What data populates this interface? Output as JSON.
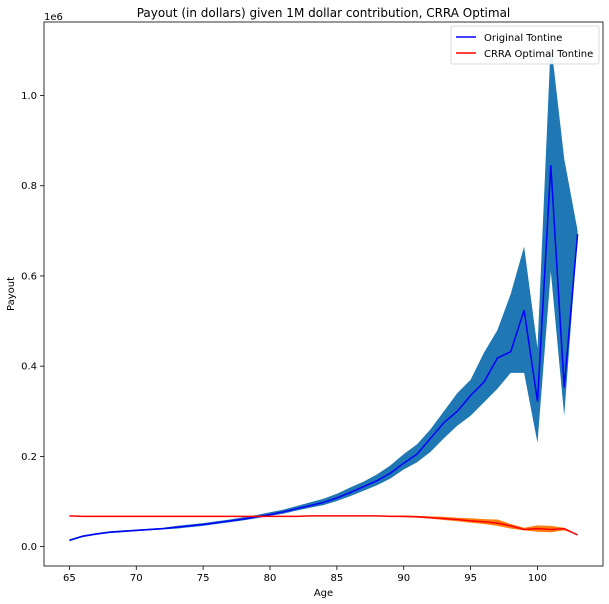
{
  "chart_data": {
    "type": "line",
    "title": "Payout (in dollars) given 1M dollar contribution, CRRA Optimal",
    "xlabel": "Age",
    "ylabel": "Payout",
    "y_offset_label": "1e6",
    "xlim": [
      63.1,
      104.9
    ],
    "ylim": [
      -0.043,
      1.163
    ],
    "x_ticks": [
      65,
      70,
      75,
      80,
      85,
      90,
      95,
      100
    ],
    "y_ticks": [
      0.0,
      0.2,
      0.4,
      0.6,
      0.8,
      1.0
    ],
    "y_tick_labels": [
      "0.0",
      "0.2",
      "0.4",
      "0.6",
      "0.8",
      "1.0"
    ],
    "grid": false,
    "legend_position": "top-right",
    "x": [
      65,
      66,
      67,
      68,
      69,
      70,
      71,
      72,
      73,
      74,
      75,
      76,
      77,
      78,
      79,
      80,
      81,
      82,
      83,
      84,
      85,
      86,
      87,
      88,
      89,
      90,
      91,
      92,
      93,
      94,
      95,
      96,
      97,
      98,
      99,
      100,
      101,
      102,
      103
    ],
    "series": [
      {
        "name": "Original Tontine",
        "color": "#0000ff",
        "band_color": "#1f77b4",
        "values": [
          0.014,
          0.023,
          0.028,
          0.032,
          0.034,
          0.036,
          0.038,
          0.04,
          0.043,
          0.046,
          0.049,
          0.053,
          0.057,
          0.061,
          0.066,
          0.071,
          0.077,
          0.084,
          0.091,
          0.098,
          0.108,
          0.12,
          0.133,
          0.146,
          0.163,
          0.185,
          0.205,
          0.24,
          0.275,
          0.3,
          0.335,
          0.365,
          0.418,
          0.432,
          0.524,
          0.322,
          0.845,
          0.353,
          0.693
        ],
        "lower": [
          0.012,
          0.021,
          0.026,
          0.03,
          0.032,
          0.034,
          0.036,
          0.038,
          0.04,
          0.043,
          0.046,
          0.05,
          0.054,
          0.058,
          0.063,
          0.068,
          0.073,
          0.08,
          0.086,
          0.092,
          0.101,
          0.112,
          0.124,
          0.136,
          0.151,
          0.171,
          0.187,
          0.21,
          0.24,
          0.268,
          0.29,
          0.32,
          0.35,
          0.385,
          0.385,
          0.23,
          0.61,
          0.29,
          0.69
        ],
        "upper": [
          0.016,
          0.025,
          0.03,
          0.034,
          0.036,
          0.038,
          0.04,
          0.042,
          0.046,
          0.049,
          0.052,
          0.056,
          0.06,
          0.065,
          0.07,
          0.076,
          0.082,
          0.09,
          0.098,
          0.106,
          0.117,
          0.131,
          0.144,
          0.16,
          0.18,
          0.205,
          0.227,
          0.26,
          0.3,
          0.34,
          0.37,
          0.43,
          0.48,
          0.56,
          0.665,
          0.44,
          1.12,
          0.86,
          0.7
        ]
      },
      {
        "name": "CRRA Optimal Tontine",
        "color": "#ff0000",
        "band_color": "#ff7f0e",
        "values": [
          0.068,
          0.067,
          0.067,
          0.067,
          0.067,
          0.067,
          0.067,
          0.067,
          0.067,
          0.067,
          0.067,
          0.067,
          0.067,
          0.067,
          0.067,
          0.067,
          0.067,
          0.067,
          0.068,
          0.068,
          0.068,
          0.068,
          0.068,
          0.068,
          0.067,
          0.067,
          0.066,
          0.064,
          0.062,
          0.06,
          0.057,
          0.055,
          0.052,
          0.046,
          0.038,
          0.04,
          0.038,
          0.04,
          0.026
        ],
        "lower": [
          0.068,
          0.067,
          0.067,
          0.067,
          0.067,
          0.067,
          0.067,
          0.067,
          0.067,
          0.067,
          0.067,
          0.067,
          0.067,
          0.067,
          0.067,
          0.067,
          0.067,
          0.067,
          0.068,
          0.068,
          0.068,
          0.068,
          0.068,
          0.067,
          0.066,
          0.065,
          0.064,
          0.062,
          0.059,
          0.056,
          0.053,
          0.05,
          0.046,
          0.04,
          0.036,
          0.033,
          0.032,
          0.036,
          0.026
        ],
        "upper": [
          0.068,
          0.067,
          0.067,
          0.067,
          0.067,
          0.067,
          0.067,
          0.067,
          0.067,
          0.067,
          0.067,
          0.067,
          0.067,
          0.067,
          0.067,
          0.067,
          0.067,
          0.067,
          0.068,
          0.068,
          0.068,
          0.069,
          0.069,
          0.069,
          0.069,
          0.069,
          0.068,
          0.067,
          0.066,
          0.064,
          0.063,
          0.061,
          0.06,
          0.05,
          0.042,
          0.047,
          0.046,
          0.042,
          0.026
        ]
      }
    ]
  }
}
